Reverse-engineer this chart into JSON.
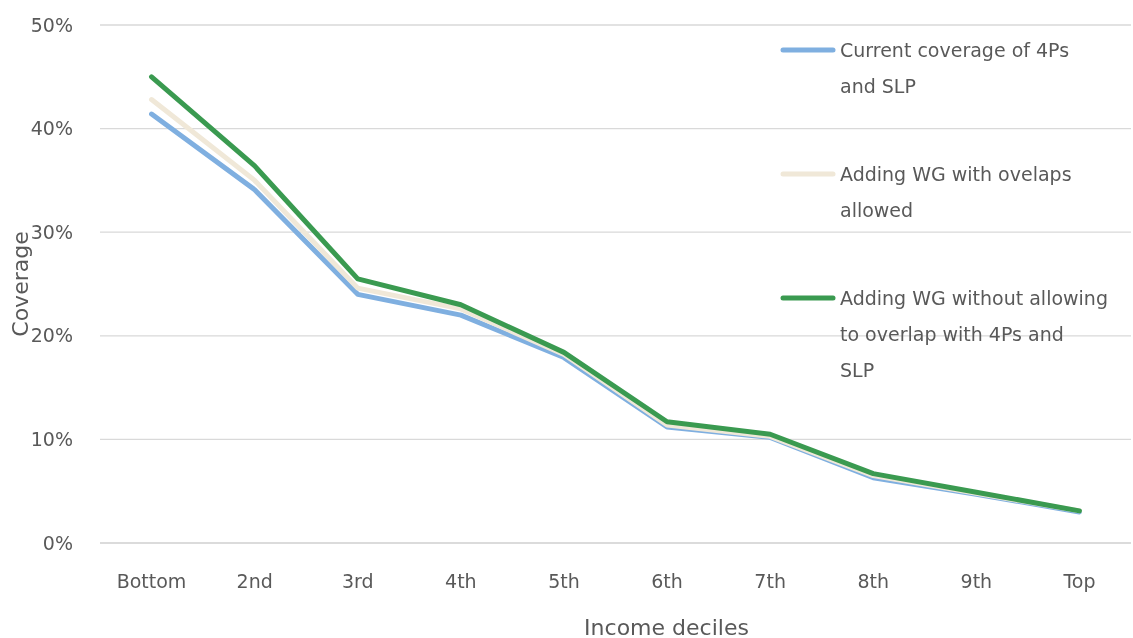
{
  "chart_data": {
    "type": "line",
    "xlabel": "Income deciles",
    "ylabel": "Coverage",
    "categories": [
      "Bottom",
      "2nd",
      "3rd",
      "4th",
      "5th",
      "6th",
      "7th",
      "8th",
      "9th",
      "Top"
    ],
    "ylim": [
      0,
      50
    ],
    "yticks": [
      {
        "value": 0,
        "label": "0%"
      },
      {
        "value": 10,
        "label": "10%"
      },
      {
        "value": 20,
        "label": "20%"
      },
      {
        "value": 30,
        "label": "30%"
      },
      {
        "value": 40,
        "label": "40%"
      },
      {
        "value": 50,
        "label": "50%"
      }
    ],
    "grid": "y",
    "legend": "right",
    "marker": "none",
    "line_style": "solid",
    "series": [
      {
        "name": "Current coverage of 4Ps and SLP",
        "color": "#7fafe0",
        "values": [
          41.4,
          34.1,
          24.0,
          22.0,
          17.9,
          11.2,
          10.2,
          6.3,
          4.7,
          3.0
        ]
      },
      {
        "name": "Adding WG with ovelaps allowed",
        "color": "#f0e8d8",
        "values": [
          42.8,
          35.0,
          24.6,
          22.6,
          18.2,
          11.4,
          10.3,
          6.5,
          4.8,
          3.1
        ]
      },
      {
        "name": "Adding WG without allowing to overlap with 4Ps and SLP",
        "color": "#3a9a50",
        "values": [
          45.0,
          36.4,
          25.5,
          23.0,
          18.4,
          11.7,
          10.5,
          6.7,
          4.9,
          3.1
        ]
      }
    ]
  }
}
